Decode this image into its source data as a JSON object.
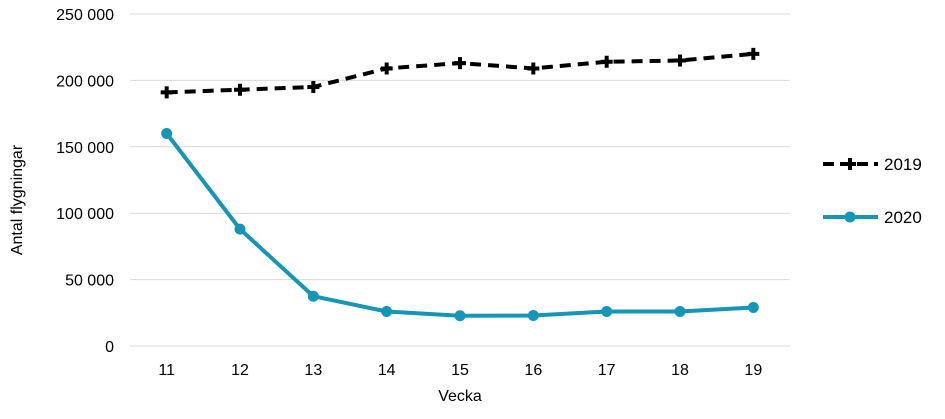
{
  "chart_data": {
    "type": "line",
    "title": "",
    "xlabel": "Vecka",
    "ylabel": "Antal flygningar",
    "categories": [
      "11",
      "12",
      "13",
      "14",
      "15",
      "16",
      "17",
      "18",
      "19"
    ],
    "ylim": [
      0,
      250000
    ],
    "yticks": [
      0,
      50000,
      100000,
      150000,
      200000,
      250000
    ],
    "ytick_labels": [
      "0",
      "50 000",
      "100 000",
      "150 000",
      "200 000",
      "250 000"
    ],
    "grid": "horizontal",
    "legend": "right",
    "series": [
      {
        "name": "2019",
        "color": "#000000",
        "style": "dashed",
        "marker": "plus",
        "values": [
          191000,
          193000,
          195000,
          209000,
          213000,
          209000,
          214000,
          215000,
          220000
        ]
      },
      {
        "name": "2020",
        "color": "#1596b6",
        "style": "solid",
        "marker": "circle",
        "values": [
          160000,
          88000,
          37500,
          26000,
          22800,
          23000,
          26000,
          26000,
          29000
        ]
      }
    ]
  }
}
